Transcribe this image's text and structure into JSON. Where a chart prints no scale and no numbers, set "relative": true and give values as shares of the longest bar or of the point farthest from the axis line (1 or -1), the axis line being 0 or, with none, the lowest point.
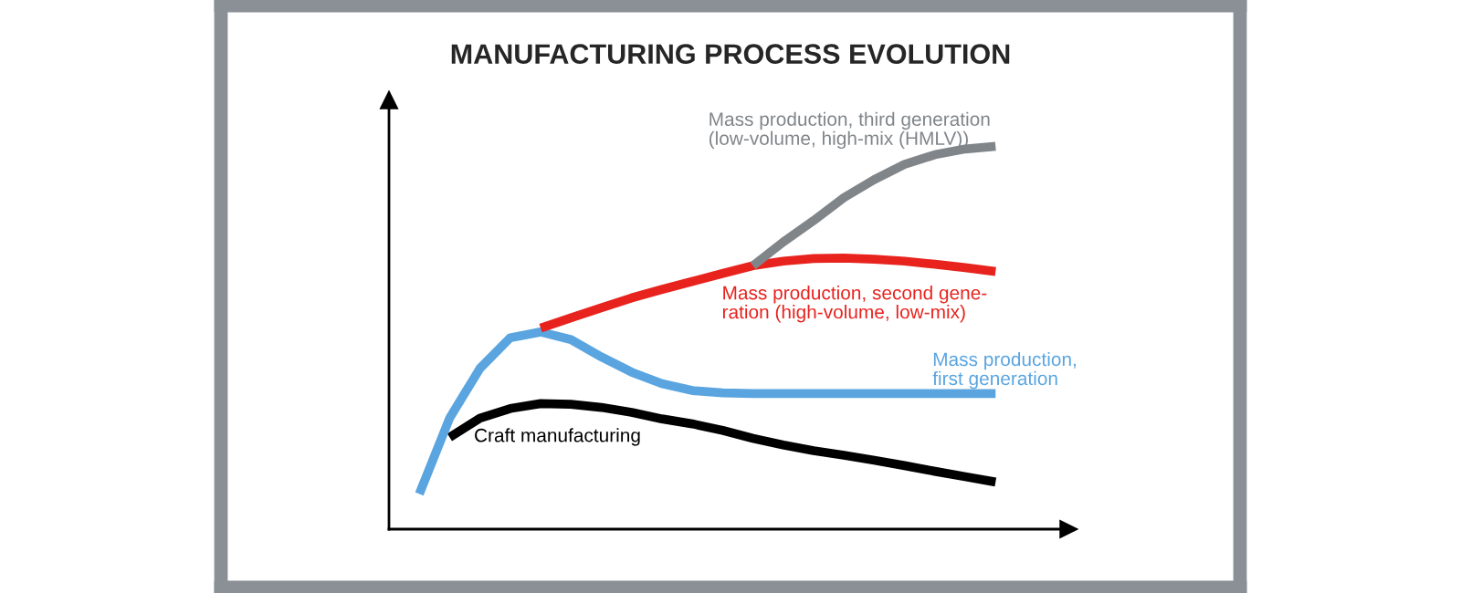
{
  "chart_data": {
    "type": "line",
    "title": "MANUFACTURING PROCESS EVOLUTION",
    "relative": true,
    "legend": false,
    "marker": "none",
    "line_style": "solid",
    "categories": [
      null,
      null,
      null,
      null,
      null,
      null,
      null,
      null,
      null,
      null,
      null,
      null,
      null,
      null,
      null,
      null,
      null,
      null,
      null,
      null
    ],
    "series": [
      {
        "name": "Craft manufacturing",
        "color": "#000000",
        "values": [
          null,
          0.24,
          0.29,
          0.315,
          0.328,
          0.326,
          0.318,
          0.305,
          0.288,
          0.275,
          0.258,
          0.237,
          0.22,
          0.205,
          0.193,
          0.18,
          0.166,
          0.151,
          0.137,
          0.123
        ]
      },
      {
        "name": "Mass production,\nfirst generation",
        "color": "#5aa5e0",
        "values": [
          0.092,
          0.29,
          0.42,
          0.5,
          0.515,
          0.495,
          0.45,
          0.41,
          0.38,
          0.362,
          0.356,
          0.354,
          0.354,
          0.354,
          0.354,
          0.354,
          0.354,
          0.354,
          0.354,
          0.354
        ]
      },
      {
        "name": "Mass production, second gene-\nration (high-volume, low-mix)",
        "color": "#e8231e",
        "values": [
          null,
          null,
          null,
          null,
          0.525,
          0.552,
          0.578,
          0.604,
          0.626,
          0.647,
          0.668,
          0.688,
          0.7,
          0.707,
          0.708,
          0.705,
          0.7,
          0.692,
          0.683,
          0.673
        ]
      },
      {
        "name": "Mass production, third generation\n(low-volume, high-mix (HMLV))",
        "color": "#808589",
        "values": [
          null,
          null,
          null,
          null,
          null,
          null,
          null,
          null,
          null,
          null,
          null,
          0.688,
          0.75,
          0.806,
          0.866,
          0.913,
          0.953,
          0.978,
          0.993,
          1.0
        ]
      }
    ]
  }
}
